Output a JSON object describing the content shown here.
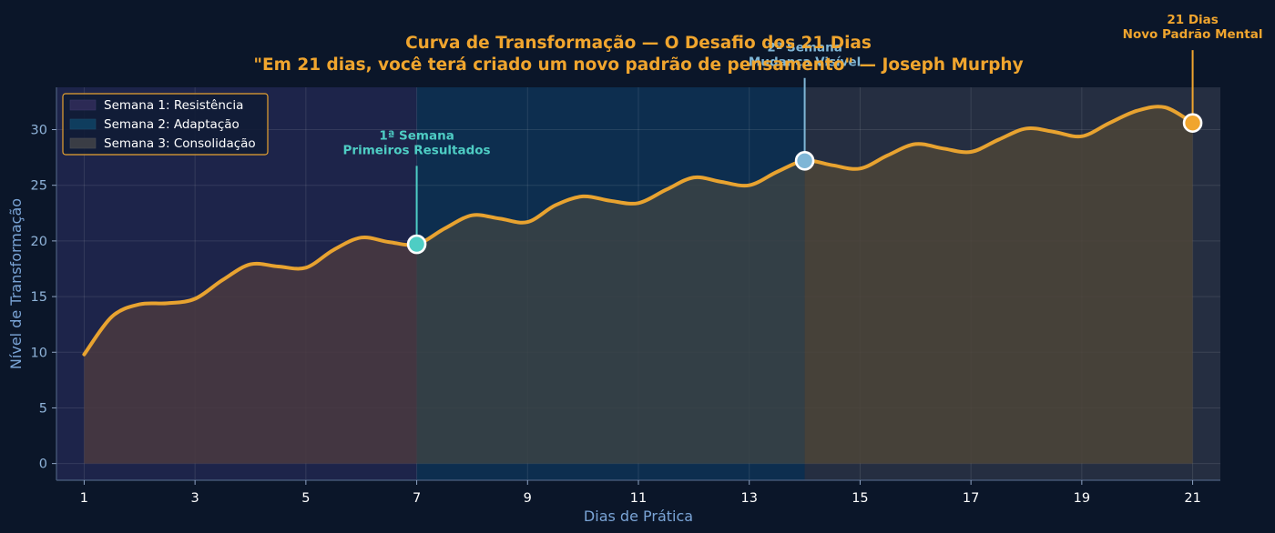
{
  "chart_data": {
    "type": "area",
    "title": "Curva de Transformação — O Desafio dos 21 Dias",
    "subtitle": "\"Em 21 dias, você terá criado um novo padrão de pensamento\" — Joseph Murphy",
    "xlabel": "Dias de Prática",
    "ylabel": "Nível de Transformação",
    "xlim": [
      0.5,
      21.5
    ],
    "ylim": [
      -1.5,
      33.8
    ],
    "x_ticks": [
      "1",
      "3",
      "5",
      "7",
      "9",
      "11",
      "13",
      "15",
      "17",
      "19",
      "21"
    ],
    "y_ticks": [
      "0",
      "5",
      "10",
      "15",
      "20",
      "25",
      "30"
    ],
    "grid": true,
    "legend_position": "top-left",
    "x": [
      1,
      1.5,
      2,
      2.5,
      3,
      3.5,
      4,
      4.5,
      5,
      5.5,
      6,
      6.5,
      7,
      7.5,
      8,
      8.5,
      9,
      9.5,
      10,
      10.5,
      11,
      11.5,
      12,
      12.5,
      13,
      13.5,
      14,
      14.5,
      15,
      15.5,
      16,
      16.5,
      17,
      17.5,
      18,
      18.5,
      19,
      19.5,
      20,
      20.5,
      21
    ],
    "y": [
      9.8,
      13.2,
      14.3,
      14.4,
      14.8,
      16.5,
      17.9,
      17.7,
      17.6,
      19.2,
      20.3,
      19.9,
      19.7,
      21.1,
      22.3,
      22.0,
      21.7,
      23.2,
      24.0,
      23.6,
      23.4,
      24.6,
      25.7,
      25.3,
      25.0,
      26.2,
      27.2,
      26.8,
      26.5,
      27.7,
      28.7,
      28.3,
      28.0,
      29.1,
      30.1,
      29.8,
      29.4,
      30.6,
      31.7,
      32.0,
      30.6
    ],
    "series": [
      {
        "name": "",
        "color": "#e8a330"
      }
    ],
    "bands": [
      {
        "label": "Semana 1: Resistência",
        "start": 1,
        "end": 7,
        "color": "#2c2a55",
        "fill": "#4a3a40"
      },
      {
        "label": "Semana 2: Adaptação",
        "start": 7,
        "end": 14,
        "color": "#0f3d5e",
        "fill": "#3b4244"
      },
      {
        "label": "Semana 3: Consolidação",
        "start": 14,
        "end": 21,
        "color": "#3a3d45",
        "fill": "#4c4438"
      }
    ],
    "annotations": [
      {
        "x": 7,
        "y": 19.7,
        "lines": [
          "1ª Semana",
          "Primeiros Resultados"
        ],
        "color": "#4ecdc4",
        "text_y": 27.8
      },
      {
        "x": 14,
        "y": 27.2,
        "lines": [
          "2ª Semana",
          "Mudança Visível"
        ],
        "color": "#7fb6d6",
        "text_y": 35.7
      },
      {
        "x": 21,
        "y": 30.6,
        "lines": [
          "21 Dias",
          "Novo Padrão Mental"
        ],
        "color": "#f0a52e",
        "text_y": 38.2
      }
    ],
    "colors": {
      "background": "#0b1629",
      "plot_background": "#0d1e3d",
      "title": "#f0a52e",
      "line": "#e8a330",
      "legend_border": "#e8a330"
    }
  }
}
